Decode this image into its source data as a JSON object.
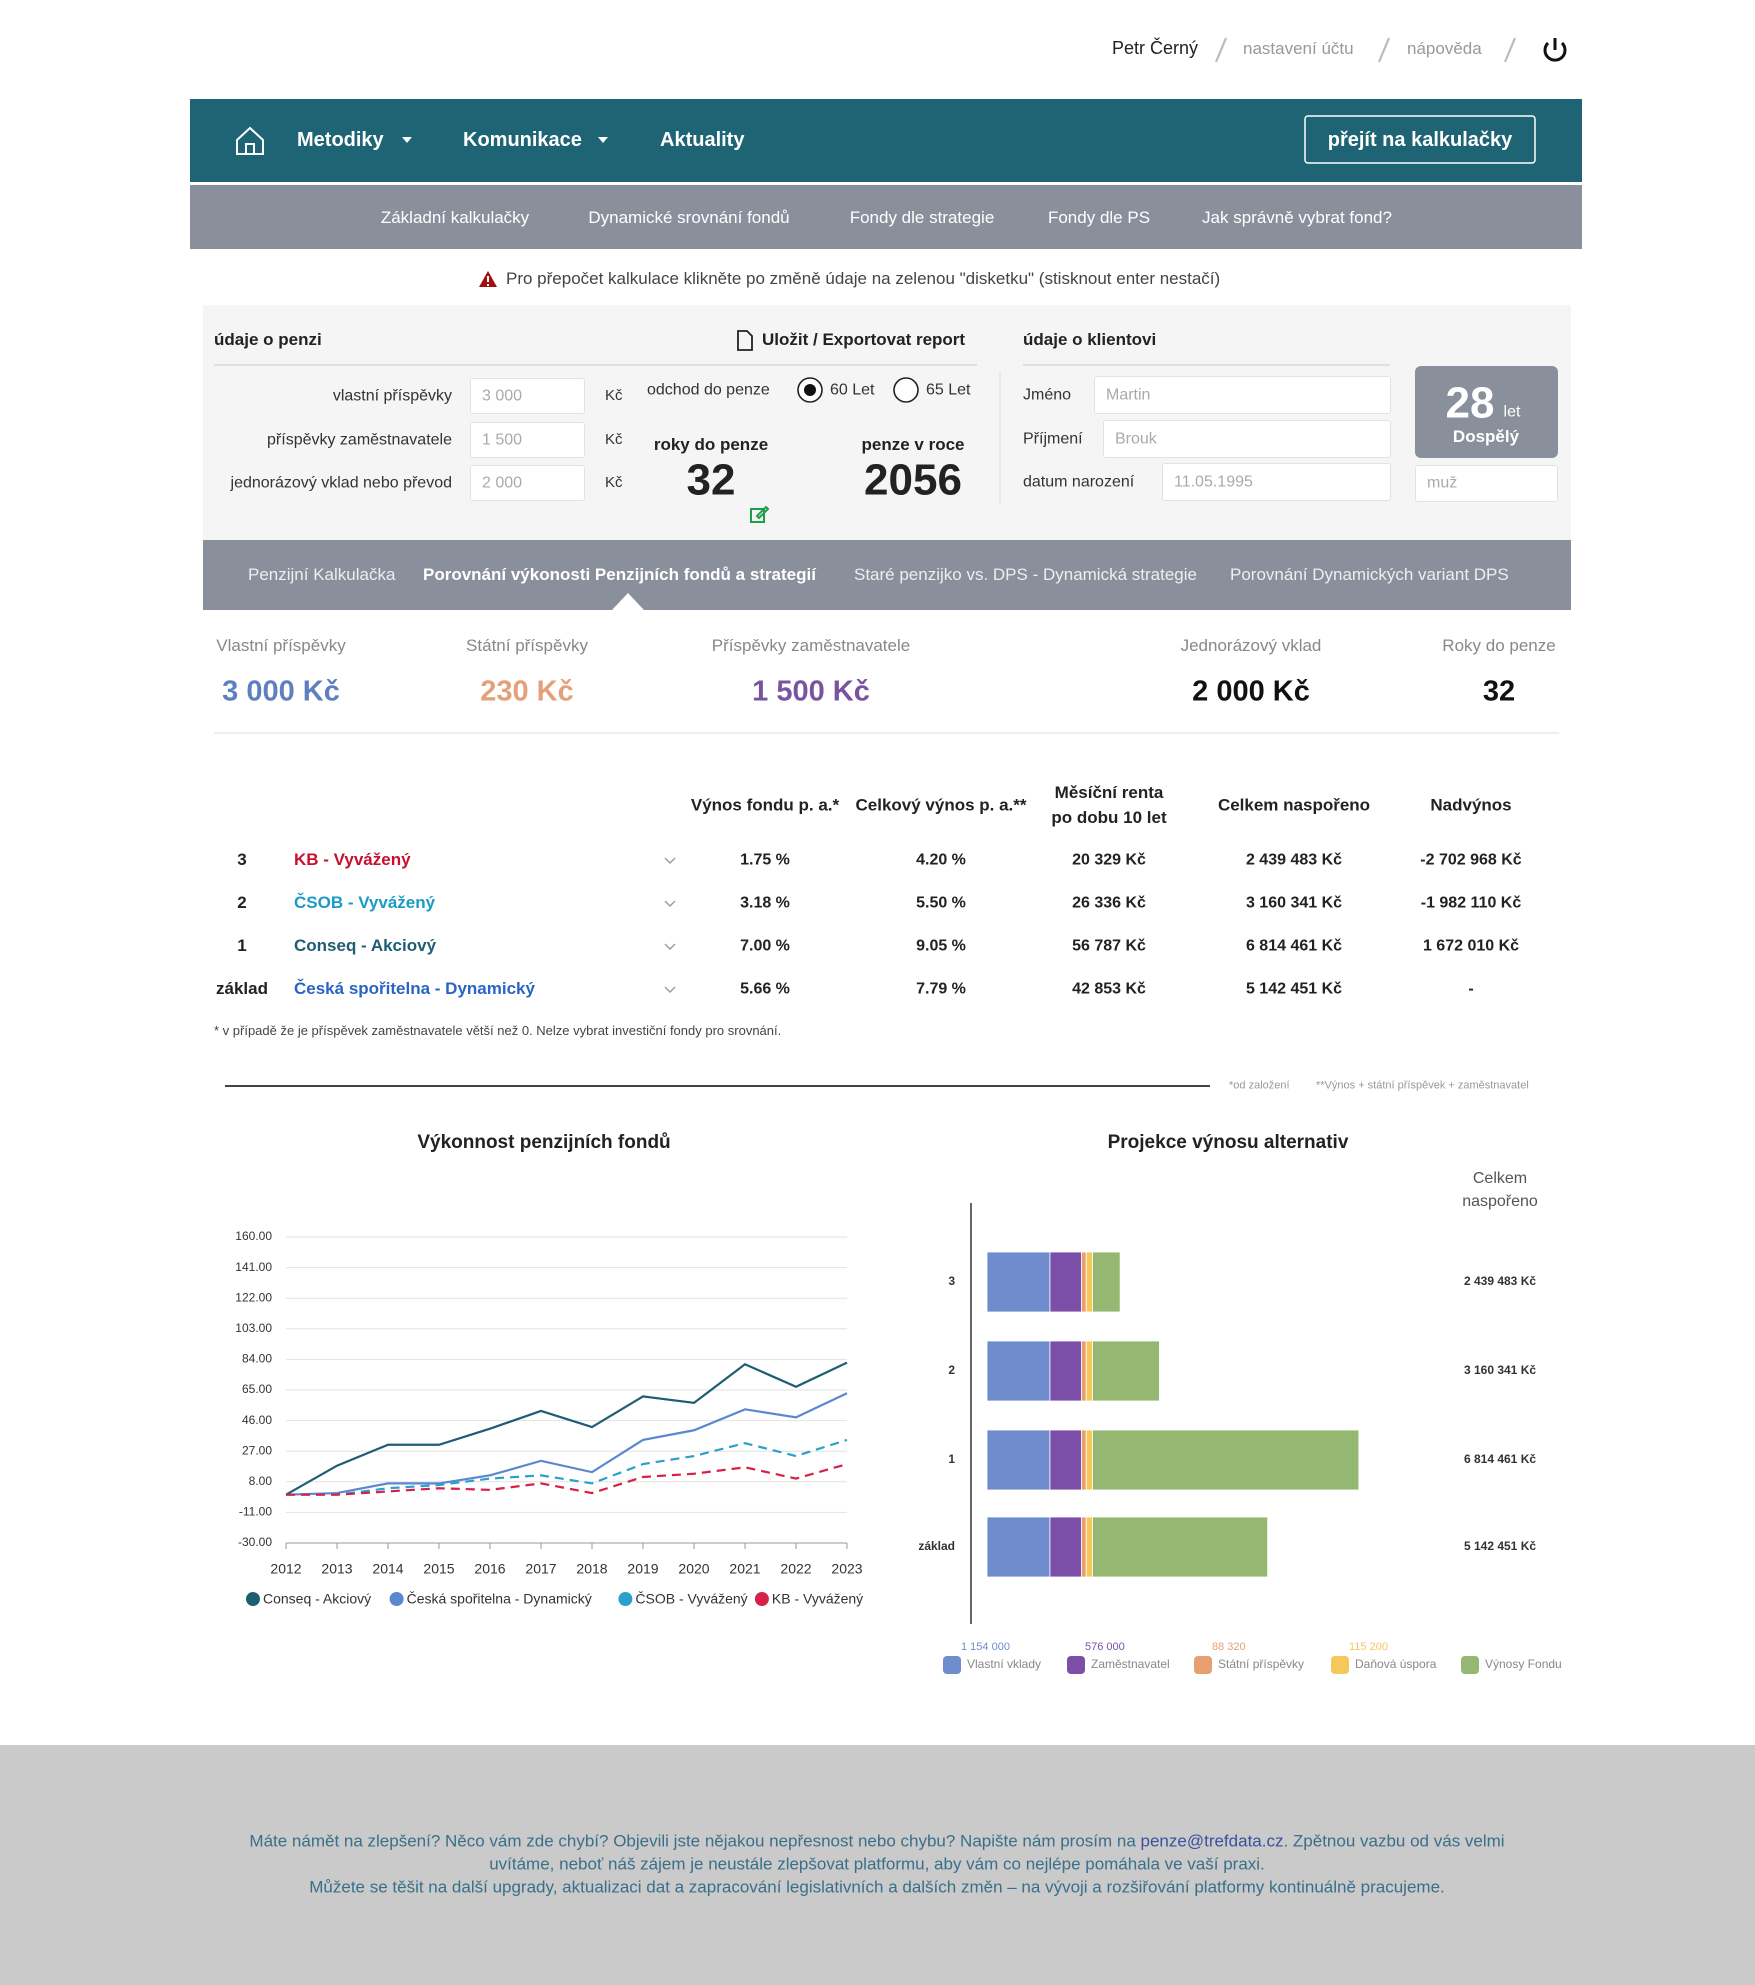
{
  "header": {
    "user": "Petr Černý",
    "account": "nastavení účtu",
    "help": "nápověda"
  },
  "nav": {
    "items": [
      "Metodiky",
      "Komunikace",
      "Aktuality"
    ],
    "cta": "přejít na kalkulačky"
  },
  "subnav": [
    "Základní kalkulačky",
    "Dynamické srovnání fondů",
    "Fondy dle strategie",
    "Fondy dle PS",
    "Jak správně vybrat fond?"
  ],
  "warning": "Pro přepočet kalkulace klikněte po změně údaje na zelenou \"disketku\" (stisknout enter nestačí)",
  "pension_form": {
    "title": "údaje o penzi",
    "export": "Uložit / Exportovat report",
    "fields": [
      {
        "label": "vlastní příspěvky",
        "value": "3 000",
        "unit": "Kč"
      },
      {
        "label": "příspěvky zaměstnavatele",
        "value": "1 500",
        "unit": "Kč"
      },
      {
        "label": "jednorázový vklad nebo převod",
        "value": "2 000",
        "unit": "Kč"
      }
    ],
    "retirement_label": "odchod do penze",
    "options": [
      "60 Let",
      "65 Let"
    ],
    "selected": 0,
    "years_label": "roky do penze",
    "years": "32",
    "year_label": "penze v roce",
    "year": "2056"
  },
  "client_form": {
    "title": "údaje o klientovi",
    "fields": [
      {
        "label": "Jméno",
        "value": "Martin"
      },
      {
        "label": "Příjmení",
        "value": "Brouk"
      },
      {
        "label": "datum narození",
        "value": "11.05.1995"
      }
    ],
    "age": "28",
    "age_unit": "let",
    "age_group": "Dospělý",
    "gender": "muž"
  },
  "tabs": {
    "items": [
      "Penzijní Kalkulačka",
      "Porovnání výkonosti Penzijních fondů a strategií",
      "Staré penzijko vs. DPS - Dynamická strategie",
      "Porovnání Dynamických variant DPS"
    ],
    "active": 1
  },
  "summary": [
    {
      "label": "Vlastní příspěvky",
      "value": "3 000 Kč",
      "color": "#5f7fc0"
    },
    {
      "label": "Státní příspěvky",
      "value": "230 Kč",
      "color": "#e3a07a"
    },
    {
      "label": "Příspěvky zaměstnavatele",
      "value": "1 500 Kč",
      "color": "#7a53a0"
    },
    {
      "label": "Jednorázový vklad",
      "value": "2 000 Kč",
      "color": "#111111"
    },
    {
      "label": "Roky do penze",
      "value": "32",
      "color": "#111111"
    }
  ],
  "table": {
    "headers": [
      "Výnos fondu p. a.*",
      "Celkový výnos p. a.**",
      "Měsíční renta\npo dobu 10 let",
      "Celkem naspořeno",
      "Nadvýnos"
    ],
    "rows": [
      {
        "rank": "3",
        "fund": "KB - Vyvážený",
        "color": "#c8102e",
        "cells": [
          "1.75 %",
          "4.20 %",
          "20 329 Kč",
          "2 439 483 Kč",
          "-2 702 968 Kč"
        ]
      },
      {
        "rank": "2",
        "fund": "ČSOB - Vyvážený",
        "color": "#1a9bc7",
        "cells": [
          "3.18 %",
          "5.50 %",
          "26 336 Kč",
          "3 160 341 Kč",
          "-1 982 110 Kč"
        ]
      },
      {
        "rank": "1",
        "fund": "Conseq - Akciový",
        "color": "#1d5e73",
        "cells": [
          "7.00 %",
          "9.05 %",
          "56 787 Kč",
          "6 814 461 Kč",
          "1 672 010 Kč"
        ]
      },
      {
        "rank": "základ",
        "fund": "Česká spořitelna - Dynamický",
        "color": "#2a64c5",
        "cells": [
          "5.66 %",
          "7.79 %",
          "42 853 Kč",
          "5 142 451 Kč",
          "-"
        ]
      }
    ],
    "footnote": "* v případě že je příspěvek zaměstnavatele větší než 0. Nelze vybrat investiční fondy pro srovnání.",
    "notes": [
      "*od založení",
      "**Výnos + státní příspěvek + zaměstnavatel"
    ]
  },
  "chart_data": [
    {
      "type": "line",
      "title": "Výkonnost penzijních fondů",
      "categories": [
        "2012",
        "2013",
        "2014",
        "2015",
        "2016",
        "2017",
        "2018",
        "2019",
        "2020",
        "2021",
        "2022",
        "2023"
      ],
      "ylim": [
        -30,
        160
      ],
      "yticks": [
        {
          "value": 160,
          "label": "160.00"
        },
        {
          "value": 141,
          "label": "141.00"
        },
        {
          "value": 122,
          "label": "122.00"
        },
        {
          "value": 103,
          "label": "103.00"
        },
        {
          "value": 84,
          "label": "84.00"
        },
        {
          "value": 65,
          "label": "65.00"
        },
        {
          "value": 46,
          "label": "46.00"
        },
        {
          "value": 27,
          "label": "27.00"
        },
        {
          "value": 8,
          "label": "8.00"
        },
        {
          "value": -11,
          "label": "-11.00"
        },
        {
          "value": -30,
          "label": "-30.00"
        }
      ],
      "grid": true,
      "series": [
        {
          "name": "Conseq - Akciový",
          "color": "#1d5e73",
          "dashed": false,
          "values": [
            0,
            18,
            31,
            31,
            41,
            52,
            42,
            61,
            57,
            81,
            67,
            82
          ]
        },
        {
          "name": "Česká spořitelna - Dynamický",
          "color": "#5a87cf",
          "dashed": false,
          "values": [
            0,
            1,
            7,
            7,
            12,
            21,
            14,
            34,
            40,
            53,
            48,
            63
          ]
        },
        {
          "name": "ČSOB - Vyvážený",
          "color": "#2aa0cc",
          "dashed": true,
          "values": [
            0,
            0,
            4,
            6,
            10,
            12,
            7,
            19,
            24,
            32,
            24,
            34
          ]
        },
        {
          "name": "KB - Vyvážený",
          "color": "#d6224a",
          "dashed": true,
          "values": [
            0,
            0,
            2,
            4,
            3,
            7,
            1,
            11,
            13,
            17,
            10,
            19
          ]
        }
      ]
    },
    {
      "type": "bar",
      "orientation": "horizontal",
      "stacked": true,
      "title": "Projekce výnosu alternativ",
      "categories": [
        "3",
        "2",
        "1",
        "základ"
      ],
      "xlim": [
        0,
        7000000
      ],
      "totals_title": [
        "Celkem",
        "naspořeno"
      ],
      "totals": [
        {
          "value": 2439483,
          "label": "2 439 483 Kč"
        },
        {
          "value": 3160341,
          "label": "3 160 341 Kč"
        },
        {
          "value": 6814461,
          "label": "6 814 461 Kč"
        },
        {
          "value": 5142451,
          "label": "5 142 451 Kč"
        }
      ],
      "series": [
        {
          "name": "Vlastní vklady",
          "color": "#6f8ccc",
          "legend_label": "1 154 000",
          "values": [
            1154000,
            1154000,
            1154000,
            1154000
          ]
        },
        {
          "name": "Zaměstnavatel",
          "color": "#7b4fa8",
          "legend_label": "576 000",
          "values": [
            576000,
            576000,
            576000,
            576000
          ]
        },
        {
          "name": "Státní příspěvky",
          "color": "#e8a070",
          "legend_label": "88 320",
          "values": [
            88320,
            88320,
            88320,
            88320
          ]
        },
        {
          "name": "Daňová úspora",
          "color": "#f5c85a",
          "legend_label": "115 200",
          "values": [
            115200,
            115200,
            115200,
            115200
          ]
        },
        {
          "name": "Výnosy Fondu",
          "color": "#94b872",
          "values": [
            505963,
            1226821,
            4880941,
            3208931
          ]
        }
      ]
    }
  ],
  "footer": {
    "before": "Máte námět na zlepšení? Něco vám zde chybí? Objevili jste nějakou nepřesnost nebo chybu? Napište nám prosím na ",
    "email": "penze@trefdata.cz",
    "after": ". Zpětnou vazbu od vás velmi uvítáme, neboť náš zájem je neustále zlepšovat platformu, aby vám co nejlépe pomáhala ve vaší praxi.",
    "line2": "Můžete se těšit na další upgrady, aktualizaci dat a zapracování legislativních a dalších změn – na vývoji a rozšiřování platformy kontinuálně pracujeme."
  }
}
